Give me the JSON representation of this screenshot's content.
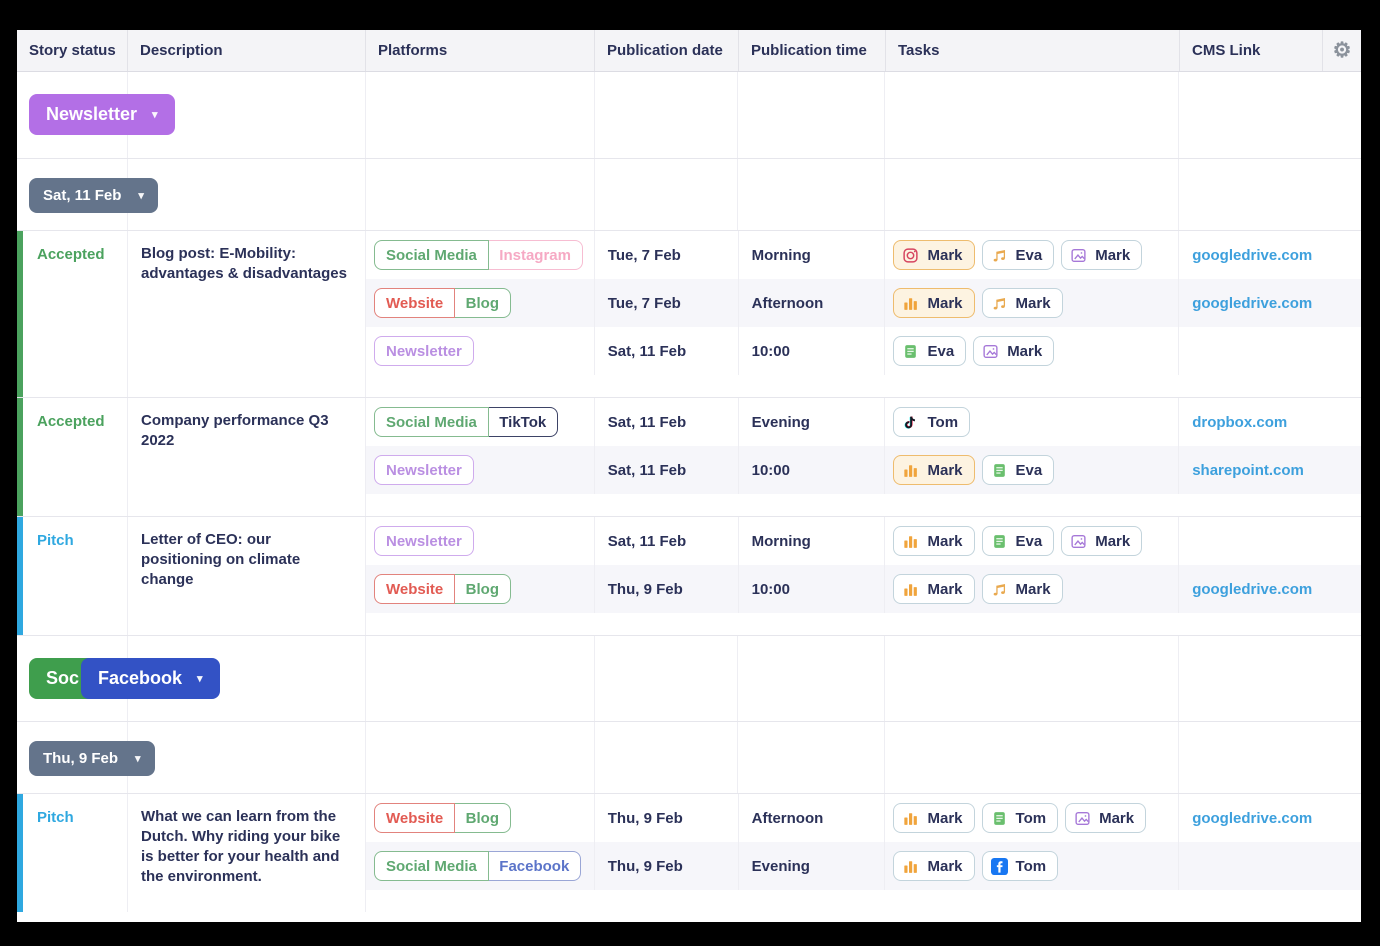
{
  "icons": {
    "gear": "⚙",
    "chevron_down": "▾"
  },
  "colors": {
    "text_navy": "#2b3158",
    "link_blue": "#3da0dd",
    "status_accepted": "#4ba25e",
    "status_pitch": "#2fa8e0",
    "button_newsletter": "#b36fe6",
    "button_social": "#3f9e4d",
    "button_facebook": "#3352c5",
    "button_date": "#64748b",
    "task_chip_orange_bg": "#fdf3e1",
    "task_chip_orange_border": "#eebc6e"
  },
  "table": {
    "columns": [
      "Story status",
      "Description",
      "Platforms",
      "Publication date",
      "Publication time",
      "Tasks",
      "CMS Link"
    ]
  },
  "groups": [
    {
      "buttons": [
        {
          "label": "Newsletter",
          "bg": "#b36fe6",
          "chevron": true,
          "clipped": false
        }
      ],
      "date_label": "Sat, 11 Feb",
      "stories": [
        {
          "status": "Accepted",
          "status_color": "#4ba25e",
          "description": "Blog post: E-Mobility: advantages & disadvantages",
          "rows": [
            {
              "platforms": [
                {
                  "label": "Social Media",
                  "color": "green"
                },
                {
                  "label": "Instagram",
                  "color": "pink"
                }
              ],
              "date": "Tue, 7 Feb",
              "time": "Morning",
              "tasks": [
                {
                  "icon": "instagram-icon",
                  "name": "Mark",
                  "variant": "orange"
                },
                {
                  "icon": "music-icon",
                  "name": "Eva",
                  "variant": "default"
                },
                {
                  "icon": "image-icon",
                  "name": "Mark",
                  "variant": "default"
                }
              ],
              "link": "googledrive.com"
            },
            {
              "platforms": [
                {
                  "label": "Website",
                  "color": "red"
                },
                {
                  "label": "Blog",
                  "color": "green"
                }
              ],
              "date": "Tue, 7 Feb",
              "time": "Afternoon",
              "tasks": [
                {
                  "icon": "chart-icon",
                  "name": "Mark",
                  "variant": "orange"
                },
                {
                  "icon": "music-icon",
                  "name": "Mark",
                  "variant": "default"
                }
              ],
              "link": "googledrive.com"
            },
            {
              "platforms": [
                {
                  "label": "Newsletter",
                  "color": "purple"
                }
              ],
              "date": "Sat, 11 Feb",
              "time": "10:00",
              "tasks": [
                {
                  "icon": "doc-icon",
                  "name": "Eva",
                  "variant": "default"
                },
                {
                  "icon": "image-icon",
                  "name": "Mark",
                  "variant": "default"
                }
              ],
              "link": ""
            }
          ]
        },
        {
          "status": "Accepted",
          "status_color": "#4ba25e",
          "description": "Company performance Q3 2022",
          "rows": [
            {
              "platforms": [
                {
                  "label": "Social Media",
                  "color": "green"
                },
                {
                  "label": "TikTok",
                  "color": "dark"
                }
              ],
              "date": "Sat, 11 Feb",
              "time": "Evening",
              "tasks": [
                {
                  "icon": "tiktok-icon",
                  "name": "Tom",
                  "variant": "default"
                }
              ],
              "link": "dropbox.com"
            },
            {
              "platforms": [
                {
                  "label": "Newsletter",
                  "color": "purple"
                }
              ],
              "date": "Sat, 11 Feb",
              "time": "10:00",
              "tasks": [
                {
                  "icon": "chart-icon",
                  "name": "Mark",
                  "variant": "orange"
                },
                {
                  "icon": "doc-icon",
                  "name": "Eva",
                  "variant": "default"
                }
              ],
              "link": "sharepoint.com"
            }
          ]
        },
        {
          "status": "Pitch",
          "status_color": "#2fa8e0",
          "description": "Letter of CEO: our positioning on climate change",
          "rows": [
            {
              "platforms": [
                {
                  "label": "Newsletter",
                  "color": "purple"
                }
              ],
              "date": "Sat, 11 Feb",
              "time": "Morning",
              "tasks": [
                {
                  "icon": "chart-icon",
                  "name": "Mark",
                  "variant": "default"
                },
                {
                  "icon": "doc-icon",
                  "name": "Eva",
                  "variant": "default"
                },
                {
                  "icon": "image-icon",
                  "name": "Mark",
                  "variant": "default"
                }
              ],
              "link": ""
            },
            {
              "platforms": [
                {
                  "label": "Website",
                  "color": "red"
                },
                {
                  "label": "Blog",
                  "color": "green"
                }
              ],
              "date": "Thu, 9 Feb",
              "time": "10:00",
              "tasks": [
                {
                  "icon": "chart-icon",
                  "name": "Mark",
                  "variant": "default"
                },
                {
                  "icon": "music-icon",
                  "name": "Mark",
                  "variant": "default"
                }
              ],
              "link": "googledrive.com"
            }
          ]
        }
      ]
    },
    {
      "buttons": [
        {
          "label": "Soc",
          "bg": "#3f9e4d",
          "chevron": false,
          "clipped": true
        },
        {
          "label": "Facebook",
          "bg": "#3352c5",
          "chevron": true,
          "clipped": false
        }
      ],
      "date_label": "Thu, 9 Feb",
      "stories": [
        {
          "status": "Pitch",
          "status_color": "#2fa8e0",
          "description": "What we can learn from the Dutch. Why riding your bike is better for your health and the environment.",
          "rows": [
            {
              "platforms": [
                {
                  "label": "Website",
                  "color": "red"
                },
                {
                  "label": "Blog",
                  "color": "green"
                }
              ],
              "date": "Thu, 9 Feb",
              "time": "Afternoon",
              "tasks": [
                {
                  "icon": "chart-icon",
                  "name": "Mark",
                  "variant": "default"
                },
                {
                  "icon": "doc-icon",
                  "name": "Tom",
                  "variant": "default"
                },
                {
                  "icon": "image-icon",
                  "name": "Mark",
                  "variant": "default"
                }
              ],
              "link": "googledrive.com"
            },
            {
              "platforms": [
                {
                  "label": "Social Media",
                  "color": "green"
                },
                {
                  "label": "Facebook",
                  "color": "blue"
                }
              ],
              "date": "Thu, 9 Feb",
              "time": "Evening",
              "tasks": [
                {
                  "icon": "chart-icon",
                  "name": "Mark",
                  "variant": "default"
                },
                {
                  "icon": "facebook-icon",
                  "name": "Tom",
                  "variant": "default"
                }
              ],
              "link": ""
            }
          ]
        }
      ]
    }
  ]
}
